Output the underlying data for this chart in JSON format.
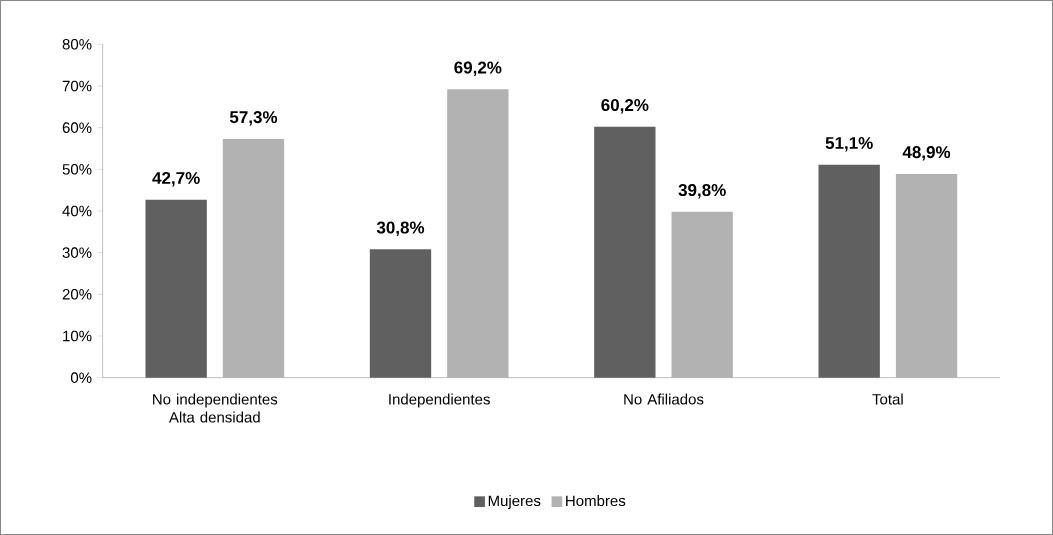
{
  "chart_data": {
    "type": "bar",
    "categories": [
      "No independientes Alta densidad",
      "Independientes",
      "No Afiliados",
      "Total"
    ],
    "series": [
      {
        "name": "Mujeres",
        "color": "#606060",
        "values": [
          42.7,
          30.8,
          60.2,
          51.1
        ],
        "value_labels": [
          "42,7%",
          "30,8%",
          "60,2%",
          "51,1%"
        ]
      },
      {
        "name": "Hombres",
        "color": "#b2b2b2",
        "values": [
          57.3,
          69.2,
          39.8,
          48.9
        ],
        "value_labels": [
          "57,3%",
          "69,2%",
          "39,8%",
          "48,9%"
        ]
      }
    ],
    "ylim": [
      0,
      80
    ],
    "yticks": [
      {
        "value": 0,
        "label": "0%"
      },
      {
        "value": 10,
        "label": "10%"
      },
      {
        "value": 20,
        "label": "20%"
      },
      {
        "value": 30,
        "label": "30%"
      },
      {
        "value": 40,
        "label": "40%"
      },
      {
        "value": 50,
        "label": "50%"
      },
      {
        "value": 60,
        "label": "60%"
      },
      {
        "value": 70,
        "label": "70%"
      },
      {
        "value": 80,
        "label": "80%"
      }
    ],
    "grid": false,
    "legend": "bottom"
  }
}
